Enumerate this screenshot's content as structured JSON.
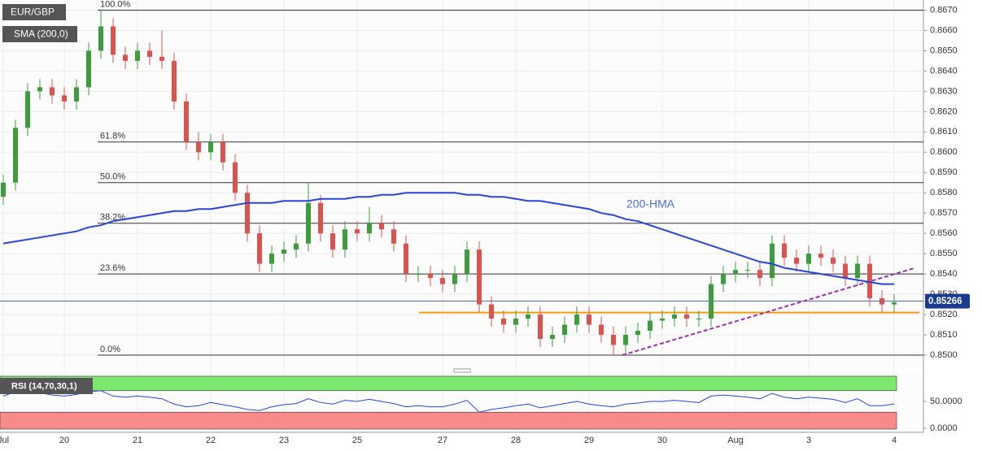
{
  "chart_data": [
    {
      "type": "candlestick",
      "title": "EUR/GBP",
      "indicator": "SMA (200,0)",
      "hma_label": "200-HMA",
      "up_color": "#3e9b3e",
      "down_color": "#d9534f",
      "hma_color": "#2a45d6",
      "categories": [
        "Jul",
        null,
        null,
        null,
        null,
        "20",
        null,
        null,
        null,
        null,
        null,
        "21",
        null,
        null,
        null,
        null,
        null,
        "22",
        null,
        null,
        null,
        null,
        null,
        "23",
        null,
        null,
        null,
        null,
        null,
        "25",
        null,
        null,
        null,
        null,
        null,
        null,
        "27",
        null,
        null,
        null,
        null,
        null,
        "28",
        null,
        null,
        null,
        null,
        null,
        "29",
        null,
        null,
        null,
        null,
        null,
        "30",
        null,
        null,
        null,
        null,
        null,
        "Aug",
        null,
        null,
        null,
        null,
        null,
        "3",
        null,
        null,
        null,
        null,
        null,
        null,
        "4"
      ],
      "open": [
        0.8578,
        0.8585,
        0.8612,
        0.863,
        0.8632,
        0.8628,
        0.8625,
        0.8632,
        0.865,
        0.8662,
        0.8648,
        0.8645,
        0.865,
        0.8647,
        0.8645,
        0.8625,
        0.8605,
        0.86,
        0.8605,
        0.8595,
        0.858,
        0.856,
        0.8545,
        0.855,
        0.8552,
        0.8555,
        0.8575,
        0.856,
        0.8552,
        0.8562,
        0.856,
        0.8565,
        0.8562,
        0.8555,
        0.854,
        0.854,
        0.8538,
        0.8535,
        0.854,
        0.8552,
        0.8525,
        0.8518,
        0.8515,
        0.8518,
        0.852,
        0.8508,
        0.851,
        0.8515,
        0.852,
        0.8515,
        0.851,
        0.8505,
        0.851,
        0.8512,
        0.8517,
        0.8518,
        0.852,
        0.8518,
        0.8518,
        0.8535,
        0.854,
        0.8542,
        0.8542,
        0.8538,
        0.8555,
        0.8548,
        0.8545,
        0.855,
        0.8548,
        0.8545,
        0.8538,
        0.8545,
        0.8528,
        0.8525
      ],
      "high": [
        0.8589,
        0.8616,
        0.8634,
        0.8636,
        0.8636,
        0.8632,
        0.8636,
        0.8654,
        0.867,
        0.8666,
        0.8652,
        0.8654,
        0.8654,
        0.866,
        0.8649,
        0.8629,
        0.861,
        0.8609,
        0.8609,
        0.8599,
        0.8584,
        0.8564,
        0.8554,
        0.8556,
        0.8559,
        0.8585,
        0.8579,
        0.8564,
        0.8566,
        0.8566,
        0.8573,
        0.8569,
        0.8566,
        0.8559,
        0.8544,
        0.8544,
        0.8542,
        0.8544,
        0.8556,
        0.8556,
        0.8529,
        0.8522,
        0.8522,
        0.8524,
        0.8524,
        0.8514,
        0.8519,
        0.8524,
        0.8524,
        0.8519,
        0.8514,
        0.8514,
        0.8516,
        0.8521,
        0.8522,
        0.8524,
        0.8524,
        0.8522,
        0.8539,
        0.8544,
        0.8546,
        0.8546,
        0.8546,
        0.8559,
        0.8559,
        0.8552,
        0.8554,
        0.8554,
        0.8552,
        0.8549,
        0.8549,
        0.8549,
        0.8532,
        0.853
      ],
      "low": [
        0.8574,
        0.8581,
        0.8608,
        0.8626,
        0.8624,
        0.8621,
        0.8621,
        0.8628,
        0.8646,
        0.8644,
        0.8641,
        0.8641,
        0.8643,
        0.8641,
        0.8621,
        0.8601,
        0.8596,
        0.8596,
        0.8591,
        0.8576,
        0.8556,
        0.8541,
        0.8541,
        0.8546,
        0.8548,
        0.8551,
        0.8556,
        0.8548,
        0.8548,
        0.8556,
        0.8556,
        0.8558,
        0.8551,
        0.8536,
        0.8536,
        0.8534,
        0.8531,
        0.8531,
        0.8536,
        0.8521,
        0.8514,
        0.8511,
        0.8511,
        0.8514,
        0.8504,
        0.8504,
        0.8506,
        0.8511,
        0.8511,
        0.8506,
        0.85,
        0.8501,
        0.8506,
        0.8508,
        0.8513,
        0.8514,
        0.8514,
        0.8514,
        0.8514,
        0.8531,
        0.8536,
        0.8538,
        0.8534,
        0.8534,
        0.8544,
        0.8541,
        0.8541,
        0.8544,
        0.8541,
        0.8534,
        0.8534,
        0.8524,
        0.8521,
        0.8521
      ],
      "close": [
        0.8585,
        0.8612,
        0.863,
        0.8632,
        0.8628,
        0.8625,
        0.8632,
        0.865,
        0.8662,
        0.8648,
        0.8645,
        0.865,
        0.8647,
        0.8645,
        0.8625,
        0.8605,
        0.86,
        0.8605,
        0.8595,
        0.858,
        0.856,
        0.8545,
        0.855,
        0.8552,
        0.8555,
        0.8575,
        0.856,
        0.8552,
        0.8562,
        0.856,
        0.8565,
        0.8562,
        0.8555,
        0.854,
        0.854,
        0.8538,
        0.8535,
        0.854,
        0.8552,
        0.8525,
        0.8518,
        0.8515,
        0.8518,
        0.852,
        0.8508,
        0.851,
        0.8515,
        0.852,
        0.8515,
        0.851,
        0.8505,
        0.851,
        0.8512,
        0.8517,
        0.8518,
        0.852,
        0.8518,
        0.8518,
        0.8535,
        0.854,
        0.8542,
        0.8542,
        0.8538,
        0.8555,
        0.8548,
        0.8545,
        0.855,
        0.8548,
        0.8545,
        0.8538,
        0.8545,
        0.8528,
        0.8525,
        0.8526
      ],
      "hma": [
        0.8555,
        0.8556,
        0.8557,
        0.8558,
        0.8559,
        0.856,
        0.8561,
        0.8563,
        0.8564,
        0.8566,
        0.8567,
        0.8568,
        0.8569,
        0.857,
        0.8571,
        0.8571,
        0.8572,
        0.8572,
        0.8573,
        0.8574,
        0.8575,
        0.8575,
        0.8575,
        0.8576,
        0.8576,
        0.8576,
        0.8577,
        0.8577,
        0.8577,
        0.8578,
        0.8578,
        0.8579,
        0.8579,
        0.858,
        0.858,
        0.858,
        0.858,
        0.858,
        0.8579,
        0.8579,
        0.8578,
        0.8578,
        0.8577,
        0.8576,
        0.8576,
        0.8575,
        0.8574,
        0.8573,
        0.8572,
        0.857,
        0.8569,
        0.8567,
        0.8566,
        0.8564,
        0.8562,
        0.856,
        0.8558,
        0.8556,
        0.8554,
        0.8552,
        0.855,
        0.8548,
        0.8546,
        0.8545,
        0.8543,
        0.8542,
        0.8541,
        0.854,
        0.8539,
        0.8538,
        0.8537,
        0.8536,
        0.8535,
        0.8535
      ],
      "fib_levels": [
        {
          "value": 0.867,
          "label": "100.0%"
        },
        {
          "value": 0.8605,
          "label": "61.8%"
        },
        {
          "value": 0.8585,
          "label": "50.0%"
        },
        {
          "value": 0.8565,
          "label": "38.2%"
        },
        {
          "value": 0.854,
          "label": "23.6%"
        },
        {
          "value": 0.85,
          "label": "0.0%"
        }
      ],
      "support": 0.8521,
      "support_color": "#f39c12",
      "trend_line": [
        0.85,
        0.8543
      ],
      "trend_color": "#9b2fae",
      "last_price": 0.85266,
      "ylim": [
        0.8494,
        0.8675
      ],
      "yticks": [
        {
          "value": 0.85,
          "label": "0.8500"
        },
        {
          "value": 0.851,
          "label": "0.8510"
        },
        {
          "value": 0.852,
          "label": "0.8520"
        },
        {
          "value": 0.853,
          "label": "0.8530"
        },
        {
          "value": 0.854,
          "label": "0.8540"
        },
        {
          "value": 0.855,
          "label": "0.8550"
        },
        {
          "value": 0.856,
          "label": "0.8560"
        },
        {
          "value": 0.857,
          "label": "0.8570"
        },
        {
          "value": 0.858,
          "label": "0.8580"
        },
        {
          "value": 0.859,
          "label": "0.8590"
        },
        {
          "value": 0.86,
          "label": "0.8600"
        },
        {
          "value": 0.861,
          "label": "0.8610"
        },
        {
          "value": 0.862,
          "label": "0.8620"
        },
        {
          "value": 0.863,
          "label": "0.8630"
        },
        {
          "value": 0.864,
          "label": "0.8640"
        },
        {
          "value": 0.865,
          "label": "0.8650"
        },
        {
          "value": 0.866,
          "label": "0.8660"
        },
        {
          "value": 0.867,
          "label": "0.8670"
        }
      ],
      "grid": true
    },
    {
      "type": "line",
      "title": "RSI (14,70,30,1)",
      "color": "#2a45d6",
      "upper": 70,
      "lower": 30,
      "values": [
        60,
        68,
        70,
        66,
        62,
        60,
        63,
        68,
        70,
        60,
        58,
        60,
        58,
        55,
        45,
        40,
        42,
        48,
        44,
        40,
        35,
        33,
        40,
        44,
        46,
        55,
        48,
        45,
        52,
        50,
        54,
        50,
        46,
        40,
        42,
        40,
        40,
        45,
        52,
        30,
        35,
        38,
        42,
        45,
        38,
        42,
        46,
        50,
        45,
        42,
        40,
        45,
        47,
        50,
        50,
        52,
        50,
        48,
        60,
        62,
        60,
        58,
        55,
        65,
        58,
        55,
        58,
        56,
        54,
        48,
        55,
        42,
        42,
        45
      ],
      "ylim": [
        0,
        100
      ],
      "yticks": [
        {
          "value": 50,
          "label": "50.0000"
        },
        {
          "value": 0,
          "label": "0.0000"
        }
      ]
    }
  ]
}
